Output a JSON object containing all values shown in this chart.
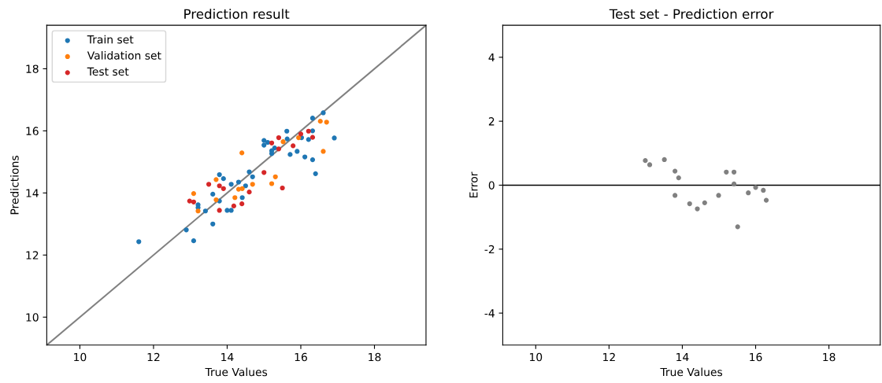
{
  "chart_data": [
    {
      "type": "scatter",
      "title": "Prediction result",
      "xlabel": "True Values",
      "ylabel": "Predictions",
      "xlim": [
        9.1,
        19.4
      ],
      "ylim": [
        9.1,
        19.4
      ],
      "xticks": [
        10,
        12,
        14,
        16,
        18
      ],
      "yticks": [
        10,
        12,
        14,
        16,
        18
      ],
      "legend": "upper left",
      "grid": false,
      "marker": "circle",
      "series": [
        {
          "name": "Train set",
          "color": "#1f77b4",
          "x": [
            11.6,
            12.89,
            13.09,
            13.21,
            13.21,
            13.41,
            13.61,
            13.61,
            13.79,
            13.9,
            13.79,
            14.0,
            14.11,
            14.11,
            14.31,
            14.41,
            14.5,
            14.6,
            14.69,
            15.0,
            15.0,
            15.1,
            15.21,
            15.21,
            15.29,
            15.62,
            15.63,
            15.71,
            15.9,
            16.02,
            16.11,
            16.21,
            16.32,
            16.32,
            16.32,
            16.4,
            16.61,
            16.91
          ],
          "values": [
            12.43,
            12.81,
            12.46,
            13.62,
            13.53,
            13.42,
            13.0,
            13.96,
            14.59,
            14.46,
            13.74,
            13.44,
            13.44,
            14.28,
            14.35,
            13.85,
            14.23,
            14.68,
            14.52,
            15.69,
            15.54,
            15.63,
            15.27,
            15.36,
            15.45,
            15.99,
            15.74,
            15.24,
            15.34,
            15.78,
            15.16,
            15.72,
            16.41,
            16.0,
            15.07,
            14.62,
            16.58,
            15.77
          ]
        },
        {
          "name": "Validation set",
          "color": "#ff7f0e",
          "x": [
            13.09,
            13.21,
            13.7,
            13.7,
            14.21,
            14.31,
            14.41,
            14.4,
            14.69,
            15.21,
            15.31,
            15.52,
            15.94,
            16.53,
            16.7,
            16.61
          ],
          "values": [
            13.98,
            13.42,
            14.43,
            13.78,
            13.85,
            14.12,
            14.14,
            15.29,
            14.28,
            14.3,
            14.52,
            15.65,
            15.78,
            16.31,
            16.28,
            15.34
          ]
        },
        {
          "name": "Test set",
          "color": "#d62728",
          "x": [
            12.98,
            13.09,
            13.5,
            13.79,
            13.79,
            13.9,
            14.18,
            14.4,
            14.6,
            15.0,
            15.21,
            15.4,
            15.4,
            15.5,
            15.79,
            16.0,
            16.21,
            16.32
          ],
          "values": [
            13.74,
            13.71,
            14.28,
            14.23,
            13.44,
            14.14,
            13.58,
            13.65,
            14.03,
            14.66,
            15.61,
            15.78,
            15.42,
            14.16,
            15.52,
            15.9,
            15.99,
            15.79
          ]
        },
        {
          "type": "line",
          "color": "#808080",
          "line_style": "solid",
          "marker": "none",
          "x": [
            9.1,
            19.4
          ],
          "values": [
            9.1,
            19.4
          ]
        }
      ]
    },
    {
      "type": "scatter",
      "title": "Test set - Prediction error",
      "xlabel": "True Values",
      "ylabel": "Error",
      "xlim": [
        9.1,
        19.4
      ],
      "ylim": [
        -5,
        5
      ],
      "xticks": [
        10,
        12,
        14,
        16,
        18
      ],
      "yticks": [
        -4,
        -2,
        0,
        2,
        4
      ],
      "grid": false,
      "marker": "circle",
      "series": [
        {
          "color": "#808080",
          "x": [
            12.99,
            13.11,
            13.51,
            13.8,
            13.9,
            13.8,
            14.2,
            14.41,
            14.61,
            14.99,
            15.2,
            15.41,
            15.41,
            15.51,
            15.8,
            16.0,
            16.21,
            16.29
          ],
          "values": [
            0.77,
            0.64,
            0.8,
            0.44,
            0.23,
            -0.32,
            -0.58,
            -0.74,
            -0.55,
            -0.32,
            0.41,
            0.41,
            0.04,
            -1.3,
            -0.24,
            -0.07,
            -0.16,
            -0.47
          ]
        }
      ],
      "ref_lines": [
        {
          "axis": "y",
          "value": 0,
          "color": "#000000",
          "line_style": "solid"
        }
      ]
    }
  ]
}
